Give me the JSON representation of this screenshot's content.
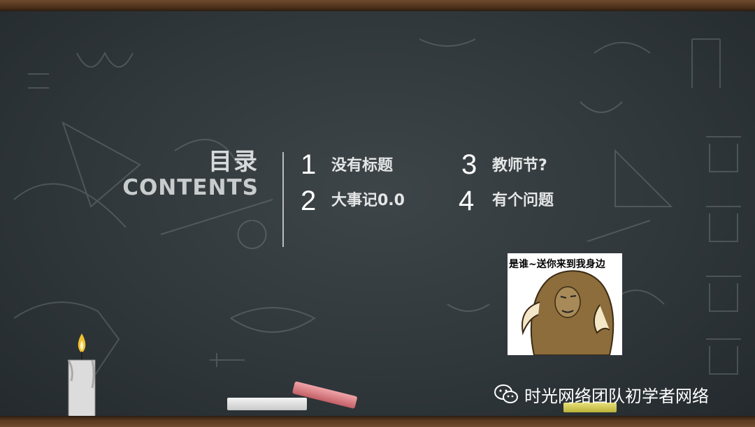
{
  "toc": {
    "title_cn": "目录",
    "title_en": "CONTENTS",
    "items": [
      {
        "num": "1",
        "label": "没有标题"
      },
      {
        "num": "2",
        "label": "大事记0.0"
      },
      {
        "num": "3",
        "label": "教师节?"
      },
      {
        "num": "4",
        "label": "有个问题"
      }
    ]
  },
  "meme": {
    "caption": "是谁~送你来到我身边"
  },
  "watermark": {
    "text": "时光网络团队初学者网络",
    "icon": "wechat-icon"
  },
  "colors": {
    "board": "#30373b",
    "frame": "#5a3a22",
    "text": "#f2f2f2"
  }
}
